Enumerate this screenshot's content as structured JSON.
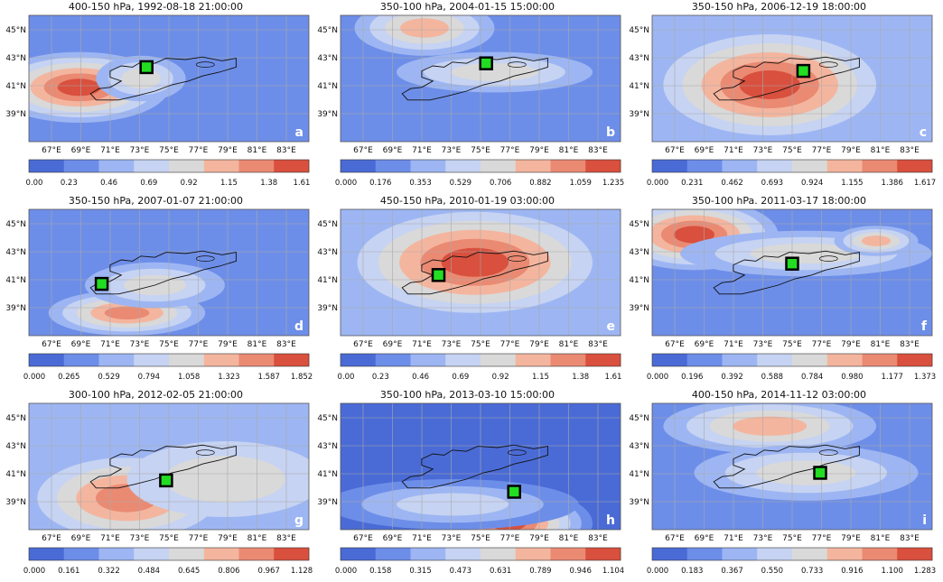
{
  "colors": [
    "#4a6bd6",
    "#6d8ee8",
    "#9db6f3",
    "#c6d3f2",
    "#d9d9d9",
    "#f4b59e",
    "#ea8a73",
    "#d9503e"
  ],
  "lat_labels": [
    "45°N",
    "43°N",
    "41°N",
    "39°N"
  ],
  "lon_labels": [
    "67°E",
    "69°E",
    "71°E",
    "73°E",
    "75°E",
    "77°E",
    "79°E",
    "81°E",
    "83°E"
  ],
  "panels": [
    {
      "letter": "a",
      "title": "400-150 hPa, 1992-08-18  21:00:00",
      "ticks": [
        "0.00",
        "0.23",
        "0.46",
        "0.69",
        "0.92",
        "1.15",
        "1.38",
        "1.61"
      ]
    },
    {
      "letter": "b",
      "title": "350-100 hPa, 2004-01-15  15:00:00",
      "ticks": [
        "0.000",
        "0.176",
        "0.353",
        "0.529",
        "0.706",
        "0.882",
        "1.059",
        "1.235"
      ]
    },
    {
      "letter": "c",
      "title": "350-150 hPa, 2006-12-19  18:00:00",
      "ticks": [
        "0.000",
        "0.231",
        "0.462",
        "0.693",
        "0.924",
        "1.155",
        "1.386",
        "1.617"
      ]
    },
    {
      "letter": "d",
      "title": "350-150 hPa, 2007-01-07  21:00:00",
      "ticks": [
        "0.000",
        "0.265",
        "0.529",
        "0.794",
        "1.058",
        "1.323",
        "1.587",
        "1.852"
      ]
    },
    {
      "letter": "e",
      "title": "450-150 hPa, 2010-01-19  03:00:00",
      "ticks": [
        "0.00",
        "0.23",
        "0.46",
        "0.69",
        "0.92",
        "1.15",
        "1.38",
        "1.61"
      ]
    },
    {
      "letter": "f",
      "title": "350-100 hPa. 2011-03-17  18:00:00",
      "ticks": [
        "0.000",
        "0.196",
        "0.392",
        "0.588",
        "0.784",
        "0.980",
        "1.177",
        "1.373"
      ]
    },
    {
      "letter": "g",
      "title": "300-100 hPa, 2012-02-05  21:00:00",
      "ticks": [
        "0.000",
        "0.161",
        "0.322",
        "0.484",
        "0.645",
        "0.806",
        "0.967",
        "1.128"
      ]
    },
    {
      "letter": "h",
      "title": "350-100 hPa, 2013-03-10  15:00:00",
      "ticks": [
        "0.000",
        "0.158",
        "0.315",
        "0.473",
        "0.631",
        "0.789",
        "0.946",
        "1.104"
      ]
    },
    {
      "letter": "i",
      "title": "400-150 hPa, 2014-11-12  03:00:00",
      "ticks": [
        "0.000",
        "0.183",
        "0.367",
        "0.550",
        "0.733",
        "0.916",
        "1.100",
        "1.283"
      ]
    }
  ]
}
